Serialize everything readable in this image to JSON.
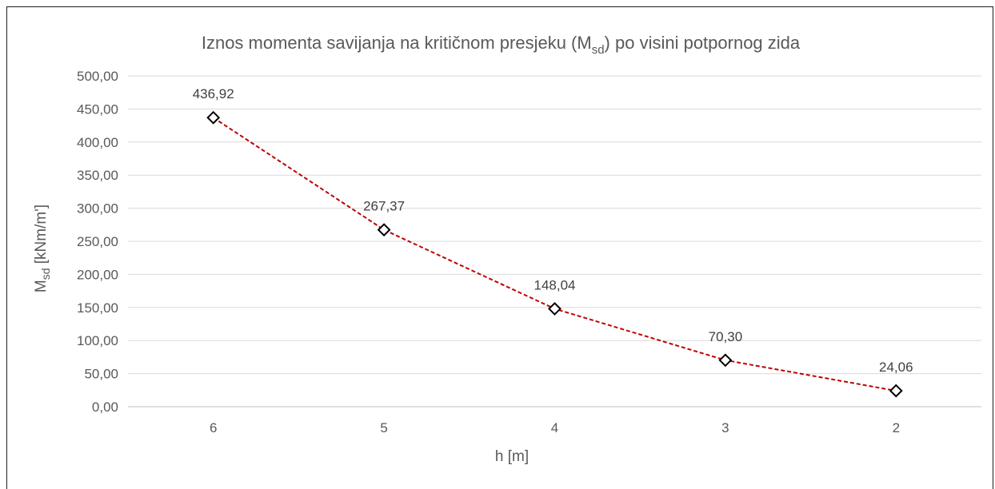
{
  "chart_data": {
    "type": "line",
    "title_main": "Iznos momenta savijanja na kritičnom presjeku (M",
    "title_sub": "sd",
    "title_end": ") po visini potpornog zida",
    "xlabel": "h [m]",
    "ylabel_main": "M",
    "ylabel_sub": "sd",
    "ylabel_end": " [kNm/m']",
    "categories": [
      "6",
      "5",
      "4",
      "3",
      "2"
    ],
    "values": [
      436.92,
      267.37,
      148.04,
      70.3,
      24.06
    ],
    "data_labels": [
      "436,92",
      "267,37",
      "148,04",
      "70,30",
      "24,06"
    ],
    "ylim": [
      0,
      500
    ],
    "yticks": [
      0,
      50,
      100,
      150,
      200,
      250,
      300,
      350,
      400,
      450,
      500
    ],
    "ytick_labels": [
      "0,00",
      "50,00",
      "100,00",
      "150,00",
      "200,00",
      "250,00",
      "300,00",
      "350,00",
      "400,00",
      "450,00",
      "500,00"
    ],
    "grid": true,
    "line_color": "#c00000",
    "marker": "diamond"
  }
}
